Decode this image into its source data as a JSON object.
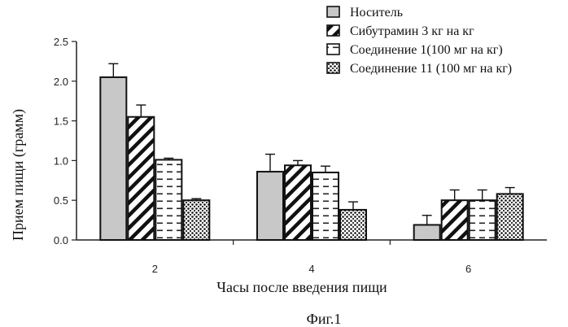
{
  "chart_data": {
    "type": "bar",
    "xlabel": "Часы после введения пищи",
    "ylabel": "Прием пищи (грамм)",
    "ylim": [
      0,
      2.5
    ],
    "yticks": [
      "0.0",
      "0.5",
      "1.0",
      "1.5",
      "2.0",
      "2.5"
    ],
    "categories": [
      "2",
      "4",
      "6"
    ],
    "grid": false,
    "legend_position": "top-right",
    "series": [
      {
        "name": "Носитель",
        "pattern": "solid-gray",
        "values": [
          2.05,
          0.86,
          0.19
        ],
        "errors": [
          0.17,
          0.22,
          0.12
        ]
      },
      {
        "name": "Сибутрамин 3 кг на кг",
        "pattern": "diagonal-hatch",
        "values": [
          1.55,
          0.94,
          0.5
        ],
        "errors": [
          0.15,
          0.06,
          0.13
        ]
      },
      {
        "name": "Соединение 1(100 мг на кг)",
        "pattern": "horizontal-dashes",
        "values": [
          1.01,
          0.85,
          0.5
        ],
        "errors": [
          0.02,
          0.08,
          0.13
        ]
      },
      {
        "name": "Соединение 11 (100 мг на кг)",
        "pattern": "dots",
        "values": [
          0.5,
          0.38,
          0.58
        ],
        "errors": [
          0.02,
          0.1,
          0.08
        ]
      }
    ]
  },
  "figure_caption": "Фиг.1"
}
